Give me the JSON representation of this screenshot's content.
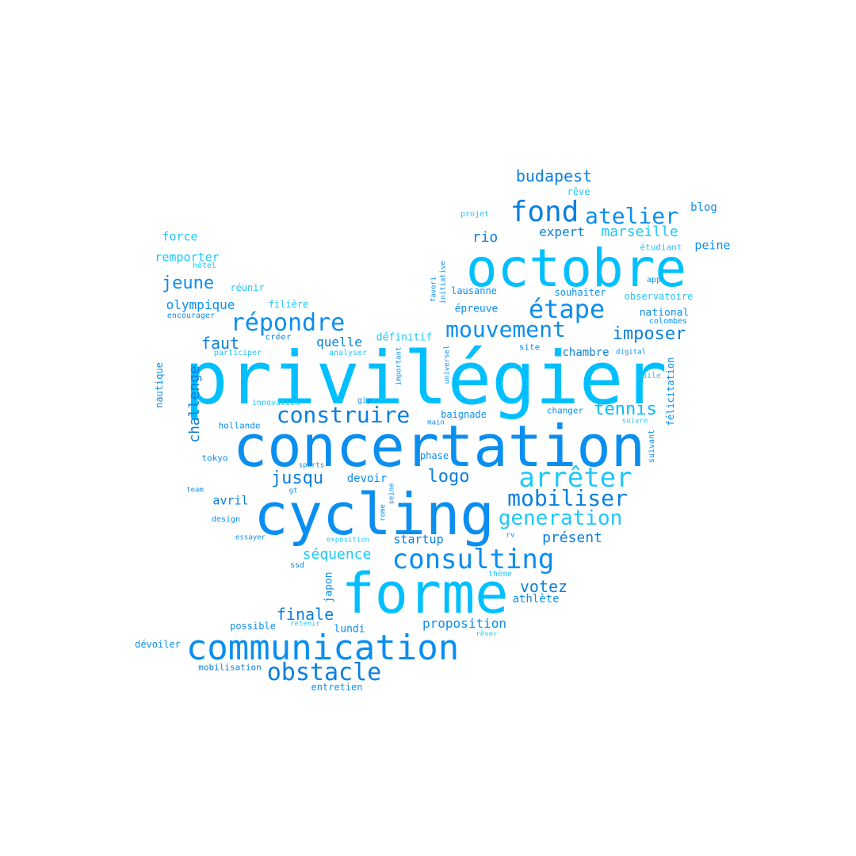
{
  "palette": {
    "sky": "#00BFFF",
    "azure": "#0A8EF0",
    "deep": "#0A7FE0",
    "pale": "#1EC8FA"
  },
  "words": [
    "privilégier",
    "concertation",
    "cycling",
    "octobre",
    "forme",
    "communication",
    "consulting",
    "obstacle",
    "arrêter",
    "mobiliser",
    "generation",
    "répondre",
    "étape",
    "mouvement",
    "atelier",
    "fond",
    "construire",
    "tennis",
    "imposer",
    "budapest",
    "jusqu",
    "logo",
    "votez",
    "présent",
    "séquence",
    "finale",
    "jeune",
    "marseille",
    "expert",
    "rio",
    "challenge",
    "faut",
    "quelle",
    "proposition",
    "olympique",
    "remporter",
    "force",
    "avril",
    "startup",
    "athlète",
    "chambre",
    "devoir",
    "peine",
    "blog",
    "national",
    "définitif",
    "observatoire",
    "souhaiter",
    "réunir",
    "filière",
    "épreuve",
    "lundi",
    "lausanne",
    "possible",
    "dévoiler",
    "entretien",
    "mobilisation",
    "japon",
    "nautique",
    "félicitation",
    "baignade",
    "changer",
    "tokyo",
    "hollande",
    "phase",
    "créer",
    "design",
    "analyser",
    "participer",
    "encourager",
    "hôtel",
    "rêve",
    "projet",
    "étudiant",
    "app",
    "colombes",
    "site",
    "digital",
    "voile",
    "suivant",
    "suivre",
    "innovation",
    "gip",
    "main",
    "sports",
    "team",
    "gt",
    "essayer",
    "exposition",
    "rv",
    "thème",
    "ssd",
    "retenir",
    "rêver",
    "seine",
    "rome",
    "important",
    "universel",
    "initiative",
    "favori"
  ]
}
